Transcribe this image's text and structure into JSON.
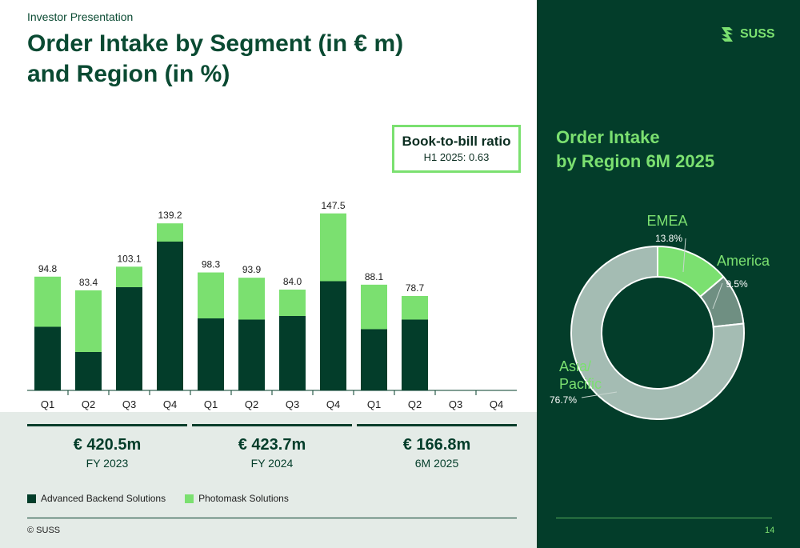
{
  "header": {
    "kicker": "Investor Presentation",
    "title": "Order Intake by Segment (in € m)\nand Region (in %)"
  },
  "book_to_bill": {
    "title": "Book-to-bill ratio",
    "subtitle": "H1 2025: 0.63"
  },
  "year_groups": [
    {
      "total": "€ 420.5m",
      "label": "FY 2023"
    },
    {
      "total": "€ 423.7m",
      "label": "FY 2024"
    },
    {
      "total": "€ 166.8m",
      "label": "6M 2025"
    }
  ],
  "legend": {
    "items": [
      {
        "label": "Advanced Backend Solutions",
        "color": "#033d2a"
      },
      {
        "label": "Photomask Solutions",
        "color": "#7be070"
      }
    ]
  },
  "footer": {
    "copyright": "© SUSS",
    "page_number": "14"
  },
  "brand": {
    "name": "SUSS",
    "accent": "#7be070",
    "dark": "#033d2a"
  },
  "region_panel": {
    "title": "Order Intake\nby Region 6M 2025"
  },
  "chart_data": [
    {
      "type": "bar",
      "stacked": true,
      "categories": [
        "Q1",
        "Q2",
        "Q3",
        "Q4",
        "Q1",
        "Q2",
        "Q3",
        "Q4",
        "Q1",
        "Q2",
        "Q3",
        "Q4"
      ],
      "series": [
        {
          "name": "Advanced Backend Solutions",
          "color": "#033d2a",
          "values": [
            53,
            32,
            86,
            124,
            60,
            59,
            62,
            91,
            51,
            59,
            null,
            null
          ]
        },
        {
          "name": "Photomask Solutions",
          "color": "#7be070",
          "values": [
            41.8,
            51.4,
            17.1,
            15.2,
            38.3,
            34.9,
            22.0,
            56.5,
            37.1,
            19.7,
            null,
            null
          ]
        }
      ],
      "totals": [
        "94.8",
        "83.4",
        "103.1",
        "139.2",
        "98.3",
        "93.9",
        "84.0",
        "147.5",
        "88.1",
        "78.7",
        "",
        ""
      ],
      "ylim": [
        0,
        160
      ],
      "grid": false
    },
    {
      "type": "pie",
      "donut": true,
      "slices": [
        {
          "name": "EMEA",
          "value": 13.8,
          "label": "13.8%",
          "color": "#7be070"
        },
        {
          "name": "America",
          "value": 9.5,
          "label": "9.5%",
          "color": "#6f8f82"
        },
        {
          "name": "Asia/\nPacific",
          "value": 76.7,
          "label": "76.7%",
          "color": "#a4bcb3"
        }
      ]
    }
  ]
}
